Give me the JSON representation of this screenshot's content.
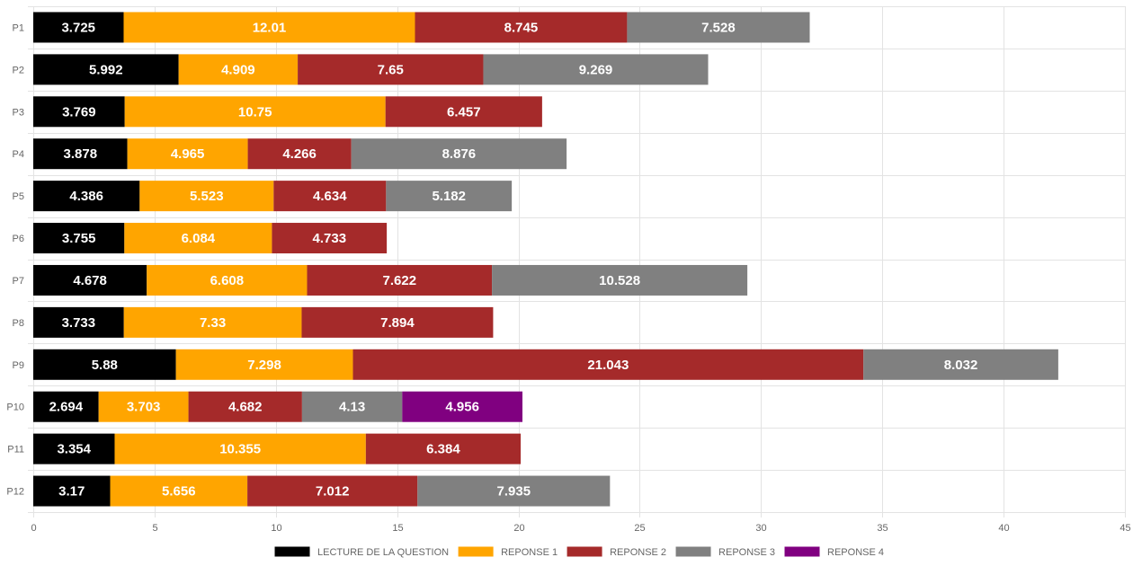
{
  "chart_data": {
    "type": "bar",
    "orientation": "horizontal",
    "stacked": true,
    "categories": [
      "P1",
      "P2",
      "P3",
      "P4",
      "P5",
      "P6",
      "P7",
      "P8",
      "P9",
      "P10",
      "P11",
      "P12"
    ],
    "xlim": [
      0,
      45
    ],
    "xticks": [
      0,
      5,
      10,
      15,
      20,
      25,
      30,
      35,
      40,
      45
    ],
    "grid": true,
    "legend_position": "bottom",
    "series": [
      {
        "name": "LECTURE DE LA QUESTION",
        "color": "#000000",
        "values": [
          3.725,
          5.992,
          3.769,
          3.878,
          4.386,
          3.755,
          4.678,
          3.733,
          5.88,
          2.694,
          3.354,
          3.17
        ]
      },
      {
        "name": "REPONSE 1",
        "color": "#FFA500",
        "values": [
          12.01,
          4.909,
          10.75,
          4.965,
          5.523,
          6.084,
          6.608,
          7.33,
          7.298,
          3.703,
          10.355,
          5.656
        ]
      },
      {
        "name": "REPONSE 2",
        "color": "#A52A2A",
        "values": [
          8.745,
          7.65,
          6.457,
          4.266,
          4.634,
          4.733,
          7.622,
          7.894,
          21.043,
          4.682,
          6.384,
          7.012
        ]
      },
      {
        "name": "REPONSE 3",
        "color": "#808080",
        "values": [
          7.528,
          9.269,
          null,
          8.876,
          5.182,
          null,
          10.528,
          null,
          8.032,
          4.13,
          null,
          7.935
        ]
      },
      {
        "name": "REPONSE 4",
        "color": "#800080",
        "values": [
          null,
          null,
          null,
          null,
          null,
          null,
          null,
          null,
          null,
          4.956,
          null,
          null
        ]
      }
    ]
  }
}
